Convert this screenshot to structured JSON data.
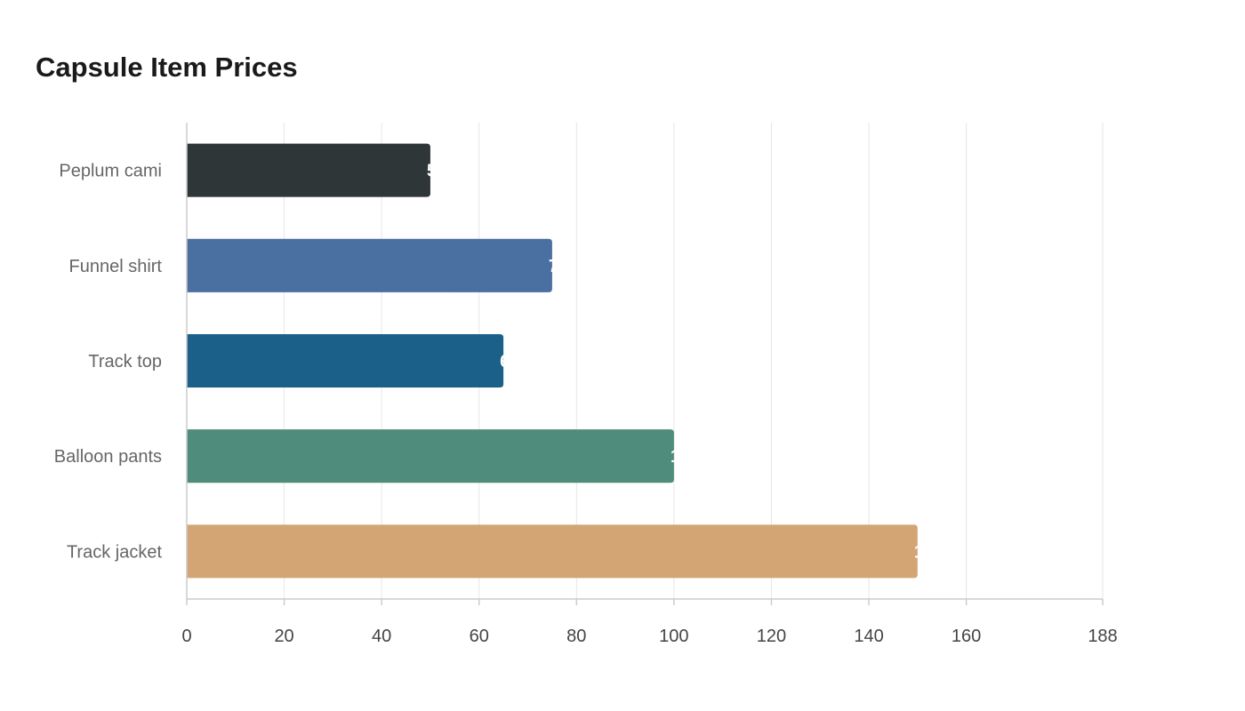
{
  "chart_data": {
    "type": "bar",
    "orientation": "horizontal",
    "title": "Capsule Item Prices",
    "xlabel": "",
    "ylabel": "",
    "categories": [
      "Peplum cami",
      "Funnel shirt",
      "Track top",
      "Balloon pants",
      "Track jacket"
    ],
    "values": [
      50,
      75,
      65,
      100,
      150
    ],
    "colors": [
      "#2e3638",
      "#4a6fa1",
      "#1a6089",
      "#4f8c7b",
      "#d3a575"
    ],
    "xlim": [
      0,
      188
    ],
    "xticks": [
      0,
      20,
      40,
      60,
      80,
      100,
      120,
      140,
      160,
      188
    ],
    "grid": true,
    "legend": "none"
  }
}
